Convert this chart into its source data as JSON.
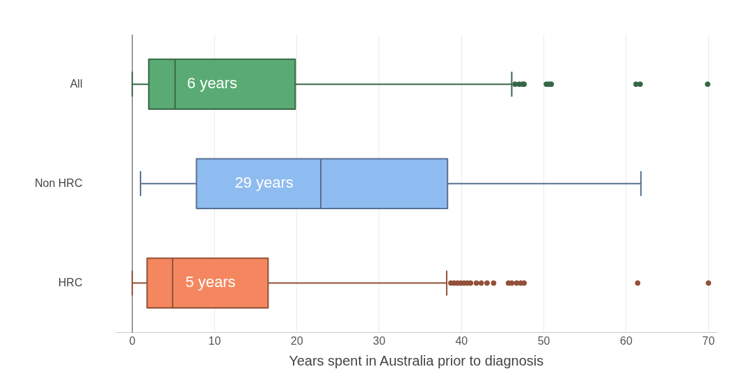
{
  "chart_data": {
    "type": "box",
    "orientation": "horizontal",
    "xlabel": "Years spent in Australia prior to diagnosis",
    "categories": [
      "All",
      "Non HRC",
      "HRC"
    ],
    "colors": [
      "#5aab73",
      "#8fbcf0",
      "#f4875f"
    ],
    "boxes": [
      {
        "low": 0,
        "q1": 2.0,
        "median": 5.2,
        "q3": 19.8,
        "high": 46.1,
        "outliers": [
          46.5,
          47.0,
          47.4,
          47.6,
          50.3,
          50.6,
          50.9,
          61.2,
          61.7,
          69.9
        ]
      },
      {
        "low": 1.0,
        "q1": 7.8,
        "median": 22.9,
        "q3": 38.3,
        "high": 61.8
      },
      {
        "low": 0,
        "q1": 1.8,
        "median": 4.9,
        "q3": 16.5,
        "high": 38.2,
        "outliers": [
          38.7,
          39.1,
          39.5,
          39.9,
          40.3,
          40.7,
          41.1,
          41.8,
          42.4,
          43.1,
          43.9,
          45.7,
          46.1,
          46.7,
          47.2,
          47.6,
          61.4,
          70.0
        ]
      }
    ],
    "xlim": [
      -2,
      71
    ],
    "xticks": [
      0,
      10,
      20,
      30,
      40,
      50,
      60,
      70
    ],
    "grid": "x",
    "ref_lines": [
      {
        "axis": "x",
        "value": 0,
        "color": "#444444"
      }
    ],
    "annotations": [
      "6 years",
      "29 years",
      "5 years"
    ]
  }
}
